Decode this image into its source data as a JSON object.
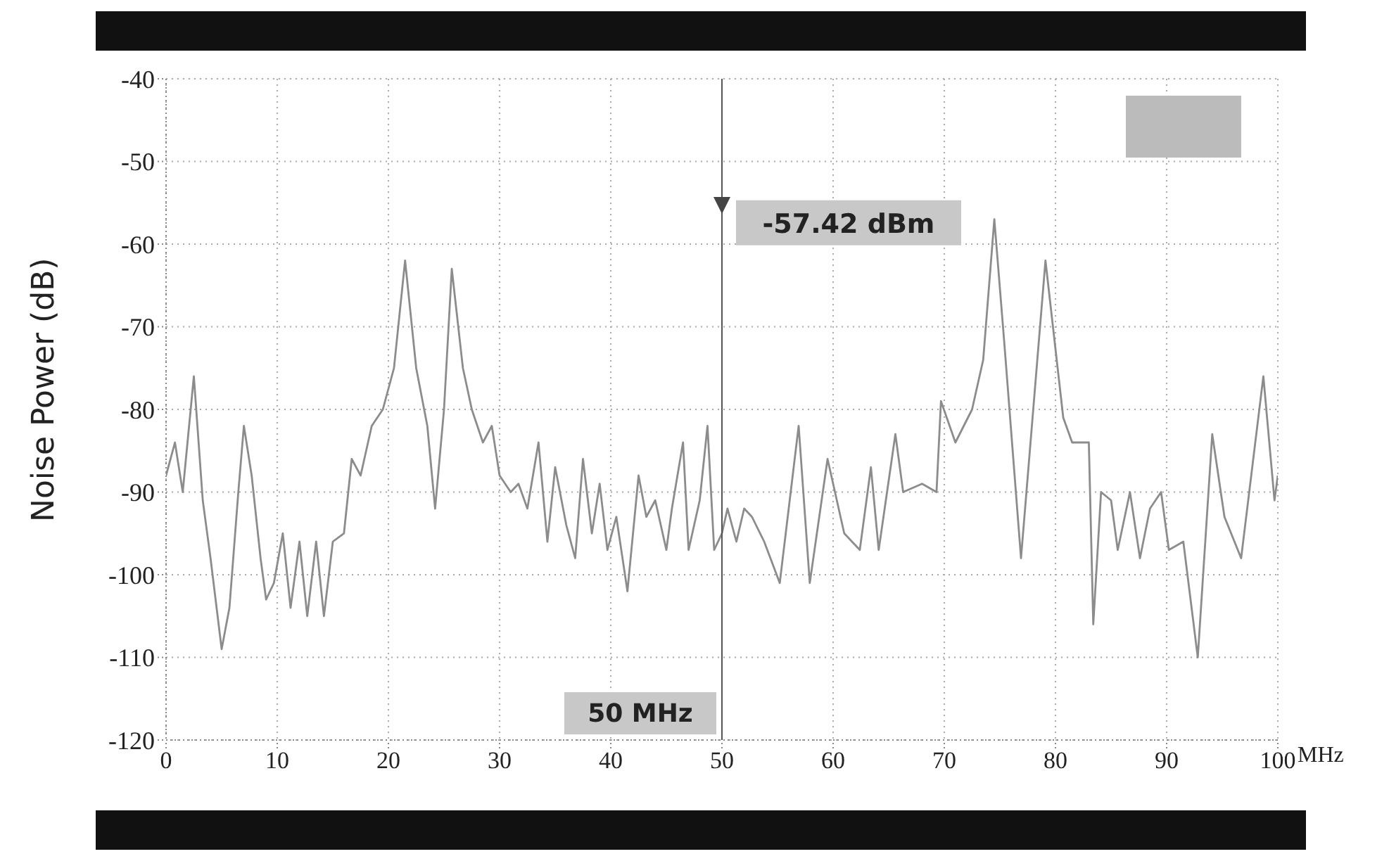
{
  "chart_data": {
    "type": "line",
    "ylabel": "Noise Power (dB)",
    "xlabel": "MHz",
    "xlim": [
      0,
      100
    ],
    "xticks": [
      0,
      10,
      20,
      30,
      40,
      50,
      60,
      70,
      80,
      90,
      100
    ],
    "ylim": [
      -120,
      -40
    ],
    "yticks": [
      -120,
      -110,
      -100,
      -90,
      -80,
      -70,
      -60,
      -50,
      -40
    ],
    "grid": true,
    "marker": "none",
    "line_style": "solid",
    "ref_lines": [
      {
        "axis": "x",
        "value": 50,
        "label": "50 MHz",
        "color": "#555555"
      }
    ],
    "annotations": [
      {
        "text": "-57.42 dBm",
        "x": 50,
        "y": -57.42
      }
    ],
    "series": [
      {
        "color": "#8c8c8c",
        "x": [
          0,
          0.8,
          1.5,
          2.5,
          3.3,
          4,
          5,
          5.7,
          6.5,
          7,
          7.7,
          8.5,
          9,
          9.7,
          10.5,
          11.2,
          12,
          12.7,
          13.5,
          14.2,
          15,
          16,
          16.7,
          17.5,
          18.5,
          19.5,
          20.5,
          21.5,
          22.5,
          23.5,
          24.2,
          25,
          25.7,
          26.7,
          27.5,
          28.5,
          29.3,
          30,
          31,
          31.7,
          32.5,
          33.5,
          34.3,
          35,
          36,
          36.8,
          37.5,
          38.3,
          39,
          39.7,
          40.5,
          41.5,
          42.5,
          43.2,
          44,
          45,
          45.5,
          46.5,
          47,
          48,
          48.7,
          49.3,
          50,
          50.5,
          51.3,
          52,
          52.7,
          53.8,
          55.2,
          56.9,
          57.9,
          59.5,
          61,
          62.4,
          63.4,
          64.1,
          65.6,
          66.3,
          68,
          69.3,
          69.7,
          71,
          72.5,
          73.5,
          74.5,
          75.4,
          76.9,
          78,
          79.1,
          80.7,
          81.5,
          83,
          83.4,
          84.1,
          85,
          85.6,
          86.7,
          87.6,
          88.5,
          89.5,
          90.2,
          91.5,
          92.8,
          94.1,
          95.2,
          96.7,
          98.7,
          99.7,
          100
        ],
        "values": [
          -88,
          -84,
          -90,
          -76,
          -91,
          -98,
          -109,
          -104,
          -90,
          -82,
          -88,
          -98,
          -103,
          -101,
          -95,
          -104,
          -96,
          -105,
          -96,
          -105,
          -96,
          -95,
          -86,
          -88,
          -82,
          -80,
          -75,
          -62,
          -75,
          -82,
          -92,
          -80,
          -63,
          -75,
          -80,
          -84,
          -82,
          -88,
          -90,
          -89,
          -92,
          -84,
          -96,
          -87,
          -94,
          -98,
          -86,
          -95,
          -89,
          -97,
          -93,
          -102,
          -88,
          -93,
          -91,
          -97,
          -92,
          -84,
          -97,
          -91,
          -82,
          -97,
          -95,
          -92,
          -96,
          -92,
          -93,
          -96,
          -101,
          -82,
          -101,
          -86,
          -95,
          -97,
          -87,
          -97,
          -83,
          -90,
          -89,
          -90,
          -79,
          -84,
          -80,
          -74,
          -57,
          -72,
          -98,
          -80,
          -62,
          -81,
          -84,
          -84,
          -106,
          -90,
          -91,
          -97,
          -90,
          -98,
          -92,
          -90,
          -97,
          -96,
          -110,
          -83,
          -93,
          -98,
          -76,
          -91,
          -88
        ]
      }
    ]
  }
}
